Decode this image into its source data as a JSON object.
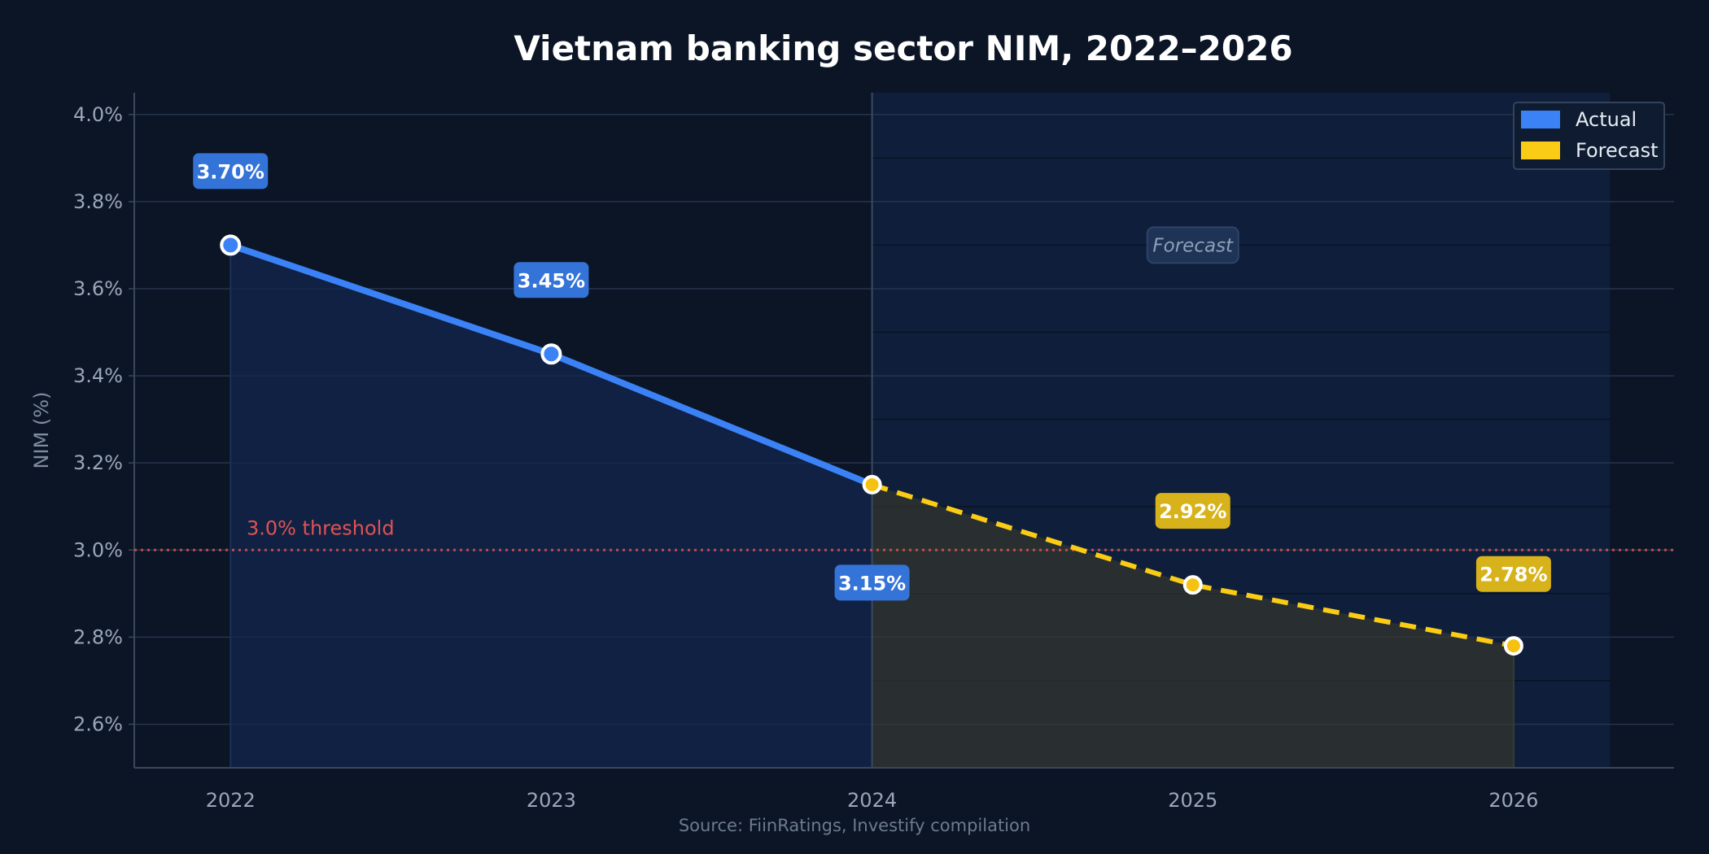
{
  "chart_data": {
    "type": "line",
    "title": "Vietnam banking sector NIM, 2022–2026",
    "xlabel": "",
    "ylabel": "NIM (%)",
    "source": "Source: FiinRatings, Investify compilation",
    "x": [
      2022,
      2023,
      2024,
      2025,
      2026
    ],
    "x_tick_labels": [
      "2022",
      "2023",
      "2024",
      "2025",
      "2026"
    ],
    "y_ticks": [
      2.6,
      2.8,
      3.0,
      3.2,
      3.4,
      3.6,
      3.8,
      4.0
    ],
    "y_tick_labels": [
      "2.6%",
      "2.8%",
      "3.0%",
      "3.2%",
      "3.4%",
      "3.6%",
      "3.8%",
      "4.0%"
    ],
    "xlim": [
      2021.7,
      2026.5
    ],
    "ylim": [
      2.5,
      4.05
    ],
    "grid": true,
    "legend_position": "top-right",
    "series": [
      {
        "name": "Actual",
        "x": [
          2022,
          2023,
          2024
        ],
        "values": [
          3.7,
          3.45,
          3.15
        ],
        "labels": [
          "3.70%",
          "3.45%",
          "3.15%"
        ],
        "color": "#3b82f6",
        "style": "solid"
      },
      {
        "name": "Forecast",
        "x": [
          2024,
          2025,
          2026
        ],
        "values": [
          3.15,
          2.92,
          2.78
        ],
        "labels": [
          "",
          "2.92%",
          "2.78%"
        ],
        "color": "#facc15",
        "style": "dashed"
      }
    ],
    "threshold": {
      "value": 3.0,
      "label": "3.0% threshold",
      "color": "#e05252"
    },
    "forecast_region": {
      "from": 2024,
      "to": 2026.3,
      "label": "Forecast"
    }
  }
}
